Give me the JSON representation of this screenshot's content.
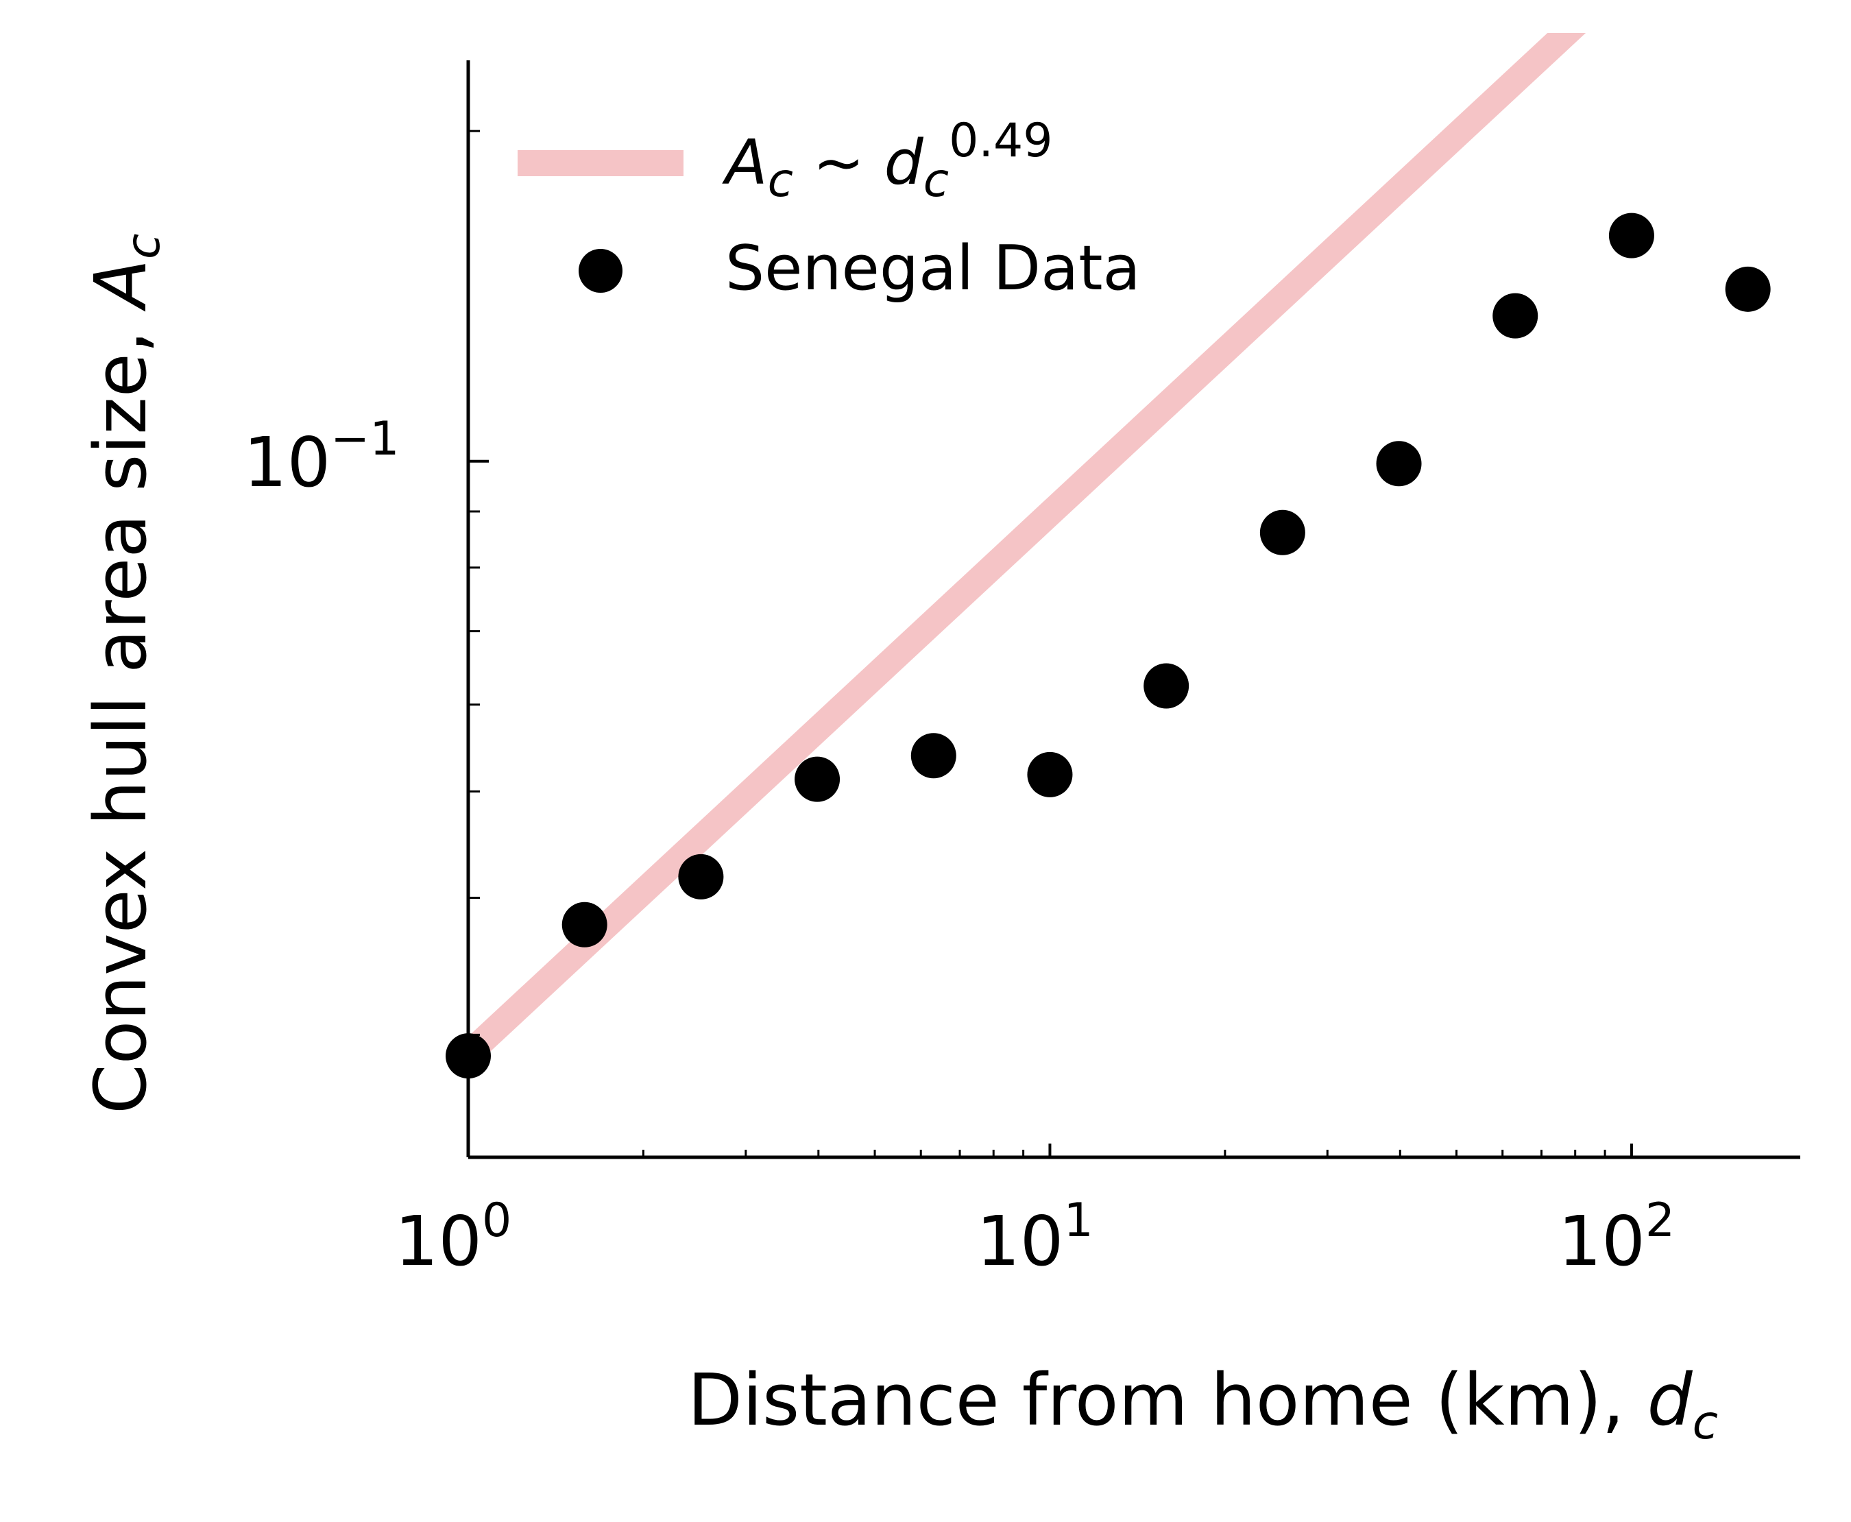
{
  "chart_data": {
    "type": "scatter",
    "title": "",
    "xlabel": {
      "text": "Distance from home (km), ",
      "var_base": "d",
      "var_sub": "c"
    },
    "ylabel": {
      "text": "Convex hull area size, ",
      "var_base": "A",
      "var_sub": "c"
    },
    "xscale": "log",
    "yscale": "log",
    "xlim": [
      1,
      195
    ],
    "ylim": [
      0.0232,
      0.232
    ],
    "x_major_ticks": [
      {
        "value": 1,
        "base": "10",
        "exp": "0"
      },
      {
        "value": 10,
        "base": "10",
        "exp": "1"
      },
      {
        "value": 100,
        "base": "10",
        "exp": "2"
      }
    ],
    "y_major_ticks": [
      {
        "value": 0.1,
        "base": "10",
        "exp": "−1"
      }
    ],
    "x_minor_ticks": [
      2,
      3,
      4,
      5,
      6,
      7,
      8,
      9,
      20,
      30,
      40,
      50,
      60,
      70,
      80,
      90
    ],
    "y_minor_ticks": [
      0.03,
      0.04,
      0.05,
      0.06,
      0.07,
      0.08,
      0.09,
      0.2
    ],
    "grid": false,
    "legend_position": "upper-left",
    "series": [
      {
        "kind": "line",
        "legend": {
          "A": "A",
          "A_sub": "c",
          "tilde": " ~ ",
          "d": "d",
          "d_sub": "c",
          "exp": "0.49"
        },
        "color": "#f5c4c6",
        "x": [
          1,
          195
        ],
        "y": [
          0.0288,
          0.3877
        ]
      },
      {
        "kind": "scatter",
        "legend": {
          "text": "Senegal Data"
        },
        "color": "#000000",
        "x": [
          1,
          1.585,
          2.512,
          3.981,
          6.31,
          10,
          15.85,
          25.12,
          39.81,
          63.1,
          100,
          158.5
        ],
        "y": [
          0.0287,
          0.0378,
          0.0418,
          0.0513,
          0.0539,
          0.0518,
          0.0624,
          0.0861,
          0.0995,
          0.1357,
          0.1606,
          0.1435
        ]
      }
    ]
  }
}
